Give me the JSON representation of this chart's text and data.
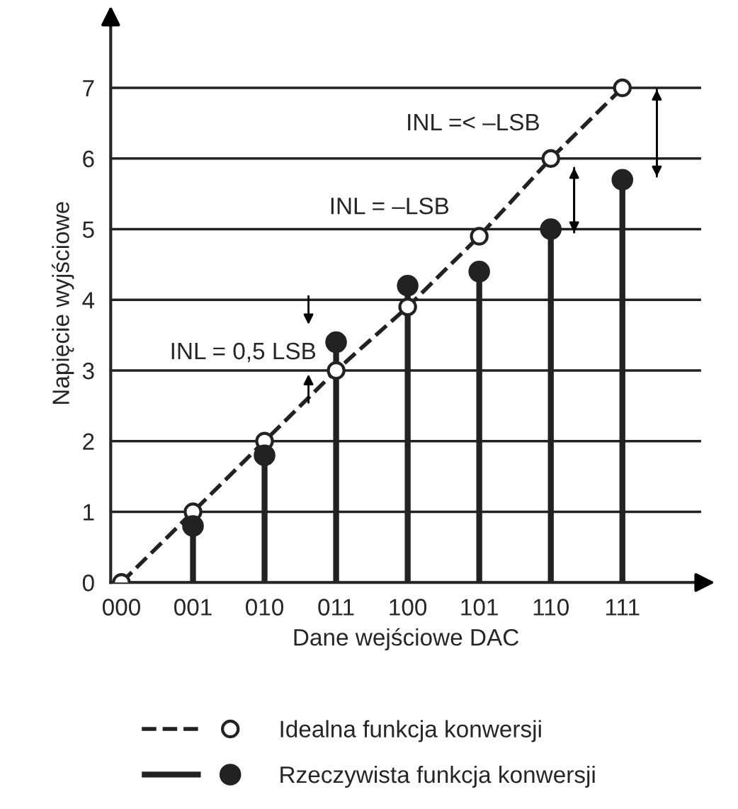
{
  "chart_data": {
    "type": "line",
    "xlabel": "Dane wejściowe DAC",
    "ylabel": "Napięcie wyjściowe",
    "categories": [
      "000",
      "001",
      "010",
      "011",
      "100",
      "101",
      "110",
      "111"
    ],
    "series": [
      {
        "name": "Idealna funkcja konwersji",
        "color": "#222222",
        "values": [
          0,
          1,
          2,
          3,
          3.9,
          4.9,
          6,
          7
        ],
        "marker": "circle",
        "line_style": "dashed"
      },
      {
        "name": "Rzeczywista funkcja konwersji",
        "type": "lollipop",
        "color": "#222222",
        "values": [
          null,
          0.8,
          1.8,
          3.4,
          4.2,
          4.4,
          5.0,
          5.7
        ],
        "marker": "circle"
      }
    ],
    "ylim": [
      0,
      7.9
    ],
    "yticks": [
      0,
      1,
      2,
      3,
      4,
      5,
      6,
      7
    ],
    "grid": "y",
    "legend": "bottom",
    "annotations": [
      "INL = 0,5 LSB",
      "INL = –LSB",
      "INL =< –LSB"
    ]
  }
}
